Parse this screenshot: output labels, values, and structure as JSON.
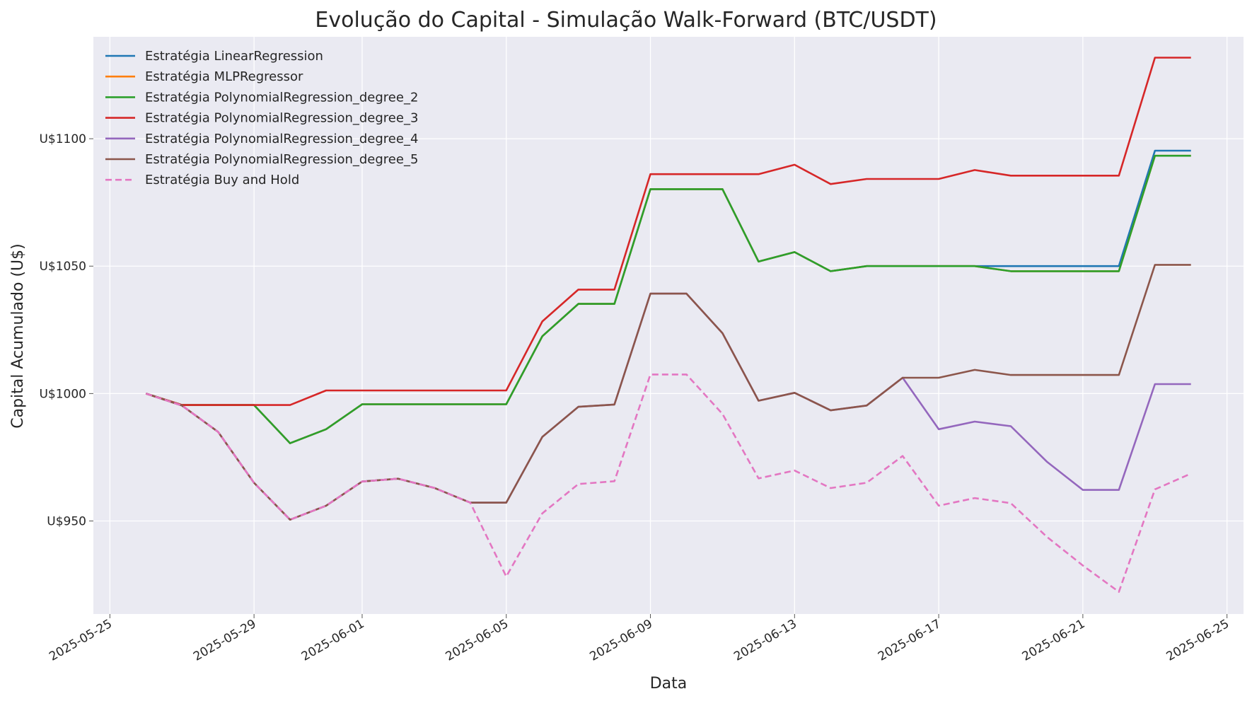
{
  "chart_data": {
    "type": "line",
    "title": "Evolução do Capital - Simulação Walk-Forward (BTC/USDT)",
    "xlabel": "Data",
    "ylabel": "Capital Acumulado (U$)",
    "x_tick_labels": [
      "2025-05-25",
      "2025-05-29",
      "2025-06-01",
      "2025-06-05",
      "2025-06-09",
      "2025-06-13",
      "2025-06-17",
      "2025-06-21",
      "2025-06-25"
    ],
    "y_tick_labels": [
      "U$950",
      "U$1000",
      "U$1050",
      "U$1100"
    ],
    "y_ticks": [
      950,
      1000,
      1050,
      1100
    ],
    "ylim": [
      913.5,
      1140
    ],
    "xlim": [
      "2025-05-24T13:00",
      "2025-06-25T11:00"
    ],
    "grid": true,
    "legend_position": "top-left",
    "x": [
      "2025-05-26",
      "2025-05-27",
      "2025-05-28",
      "2025-05-29",
      "2025-05-30",
      "2025-05-31",
      "2025-06-01",
      "2025-06-02",
      "2025-06-03",
      "2025-06-04",
      "2025-06-05",
      "2025-06-06",
      "2025-06-07",
      "2025-06-08",
      "2025-06-09",
      "2025-06-10",
      "2025-06-11",
      "2025-06-12",
      "2025-06-13",
      "2025-06-14",
      "2025-06-15",
      "2025-06-16",
      "2025-06-17",
      "2025-06-18",
      "2025-06-19",
      "2025-06-20",
      "2025-06-21",
      "2025-06-22",
      "2025-06-23",
      "2025-06-24"
    ],
    "series": [
      {
        "name": "Estratégia LinearRegression",
        "color": "#1f77b4",
        "dashed": false,
        "values": [
          1000,
          995.5,
          995.5,
          995.5,
          980.5,
          986,
          995.8,
          995.8,
          995.8,
          995.8,
          995.8,
          1022.5,
          1035.2,
          1035.2,
          1080.2,
          1080.2,
          1080.2,
          1051.8,
          1055.5,
          1048,
          1050,
          1050,
          1050,
          1050,
          1050,
          1050,
          1050,
          1050,
          1095.3,
          1095.3
        ]
      },
      {
        "name": "Estratégia MLPRegressor",
        "color": "#ff7f0e",
        "dashed": false,
        "values": [
          1000,
          995.5,
          995.5,
          995.5,
          980.5,
          986,
          995.8,
          995.8,
          995.8,
          995.8,
          995.8,
          1022.5,
          1035.2,
          1035.2,
          1080.2,
          1080.2,
          1080.2,
          1051.8,
          1055.5,
          1048,
          1050,
          1050,
          1050,
          1050,
          1048,
          1048,
          1048,
          1048,
          1093.3,
          1093.3
        ]
      },
      {
        "name": "Estratégia PolynomialRegression_degree_2",
        "color": "#2ca02c",
        "dashed": false,
        "values": [
          1000,
          995.5,
          995.5,
          995.5,
          980.5,
          986,
          995.8,
          995.8,
          995.8,
          995.8,
          995.8,
          1022.5,
          1035.2,
          1035.2,
          1080.2,
          1080.2,
          1080.2,
          1051.8,
          1055.5,
          1048,
          1050,
          1050,
          1050,
          1050,
          1048,
          1048,
          1048,
          1048,
          1093.3,
          1093.3
        ]
      },
      {
        "name": "Estratégia PolynomialRegression_degree_3",
        "color": "#d62728",
        "dashed": false,
        "values": [
          1000,
          995.5,
          995.5,
          995.5,
          995.5,
          1001.2,
          1001.2,
          1001.2,
          1001.2,
          1001.2,
          1001.2,
          1028.3,
          1040.8,
          1040.8,
          1086.1,
          1086.1,
          1086.1,
          1086.1,
          1089.8,
          1082.2,
          1084.2,
          1084.2,
          1084.2,
          1087.7,
          1085.5,
          1085.5,
          1085.5,
          1085.5,
          1131.8,
          1131.8
        ]
      },
      {
        "name": "Estratégia PolynomialRegression_degree_4",
        "color": "#9467bd",
        "dashed": false,
        "values": [
          1000,
          995.3,
          985,
          965,
          950.5,
          956,
          965.5,
          966.6,
          963,
          957.2,
          957.2,
          983,
          994.8,
          995.7,
          1039.2,
          1039.2,
          1023.7,
          997.2,
          1000.3,
          993.4,
          995.3,
          1006.2,
          986,
          989,
          987.2,
          973.3,
          962.2,
          962.2,
          1003.7,
          1003.7
        ]
      },
      {
        "name": "Estratégia PolynomialRegression_degree_5",
        "color": "#8c564b",
        "dashed": false,
        "values": [
          1000,
          995.3,
          985,
          965,
          950.5,
          956,
          965.5,
          966.6,
          963,
          957.2,
          957.2,
          983,
          994.8,
          995.7,
          1039.2,
          1039.2,
          1023.7,
          997.2,
          1000.3,
          993.4,
          995.3,
          1006.2,
          1006.2,
          1009.3,
          1007.3,
          1007.3,
          1007.3,
          1007.3,
          1050.5,
          1050.5
        ]
      },
      {
        "name": "Estratégia Buy and Hold",
        "color": "#e377c2",
        "dashed": true,
        "values": [
          1000,
          995.3,
          985,
          965,
          950.5,
          956,
          965.5,
          966.6,
          963,
          957.2,
          928.2,
          953,
          964.5,
          965.6,
          1007.5,
          1007.5,
          992,
          966.7,
          969.8,
          962.9,
          965,
          975.5,
          956,
          959,
          957,
          943.8,
          932.5,
          922.2,
          962.4,
          968.6
        ]
      }
    ]
  }
}
